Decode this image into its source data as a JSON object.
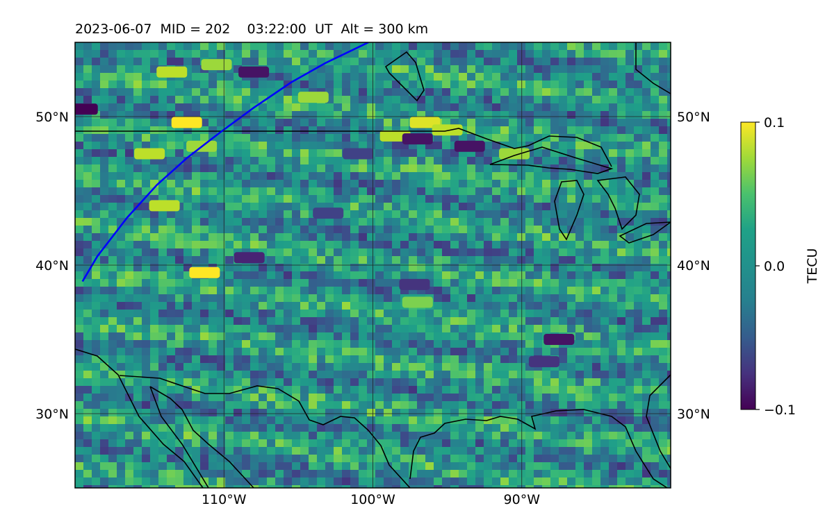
{
  "chart_data": {
    "type": "heatmap",
    "title": "2023-06-07  MID = 202    03:22:00  UT  Alt = 300 km",
    "projection": "map (plate carrée)",
    "xlabel": "",
    "ylabel": "",
    "xlim": [
      -120,
      -80
    ],
    "ylim": [
      25,
      55
    ],
    "x_ticks": [
      {
        "value": -110,
        "label": "110°W"
      },
      {
        "value": -100,
        "label": "100°W"
      },
      {
        "value": -90,
        "label": "90°W"
      }
    ],
    "y_ticks": [
      {
        "value": 30,
        "label": "30°N"
      },
      {
        "value": 40,
        "label": "40°N"
      },
      {
        "value": 50,
        "label": "50°N"
      }
    ],
    "grid": true,
    "colormap": "viridis",
    "colorbar": {
      "label": "TECU",
      "range": [
        -0.1,
        0.1
      ],
      "ticks": [
        {
          "value": 0.1,
          "label": "0.1"
        },
        {
          "value": 0.0,
          "label": "0.0"
        },
        {
          "value": -0.1,
          "label": "−0.1"
        }
      ]
    },
    "satellite_track": {
      "color": "#0000ff",
      "points": [
        [
          -119.5,
          38.9
        ],
        [
          -118.5,
          40.6
        ],
        [
          -116.5,
          43.2
        ],
        [
          -114.5,
          45.4
        ],
        [
          -112.5,
          47.2
        ],
        [
          -110.3,
          48.9
        ],
        [
          -108,
          50.6
        ],
        [
          -105.5,
          52.3
        ],
        [
          -103.2,
          53.6
        ],
        [
          -100.3,
          55
        ]
      ]
    },
    "enhancement_patches": [
      {
        "lon": -111.3,
        "lat": 39.5,
        "value": 0.1
      },
      {
        "lon": -112.5,
        "lat": 49.6,
        "value": 0.1
      },
      {
        "lon": -113.5,
        "lat": 53.0,
        "value": 0.08
      },
      {
        "lon": -110.5,
        "lat": 53.5,
        "value": 0.07
      },
      {
        "lon": -104.0,
        "lat": 51.3,
        "value": 0.07
      },
      {
        "lon": -96.5,
        "lat": 49.6,
        "value": 0.09
      },
      {
        "lon": -98.5,
        "lat": 48.7,
        "value": 0.08
      },
      {
        "lon": -95.0,
        "lat": 49.1,
        "value": 0.08
      },
      {
        "lon": -90.5,
        "lat": 47.5,
        "value": 0.07
      },
      {
        "lon": -114.0,
        "lat": 44.0,
        "value": 0.08
      },
      {
        "lon": -115.0,
        "lat": 47.5,
        "value": 0.08
      },
      {
        "lon": -97.0,
        "lat": 37.5,
        "value": 0.06
      },
      {
        "lon": -111.5,
        "lat": 48.0,
        "value": 0.07
      }
    ],
    "depletion_patches": [
      {
        "lon": -108.0,
        "lat": 53.0,
        "value": -0.09
      },
      {
        "lon": -119.5,
        "lat": 50.5,
        "value": -0.1
      },
      {
        "lon": -97.0,
        "lat": 48.5,
        "value": -0.09
      },
      {
        "lon": -93.5,
        "lat": 48.0,
        "value": -0.09
      },
      {
        "lon": -87.5,
        "lat": 35.0,
        "value": -0.09
      },
      {
        "lon": -108.3,
        "lat": 40.5,
        "value": -0.08
      },
      {
        "lon": -97.2,
        "lat": 38.7,
        "value": -0.07
      },
      {
        "lon": -88.5,
        "lat": 33.5,
        "value": -0.07
      },
      {
        "lon": -103.0,
        "lat": 43.5,
        "value": -0.06
      },
      {
        "lon": -101.0,
        "lat": 47.5,
        "value": -0.06
      }
    ]
  }
}
